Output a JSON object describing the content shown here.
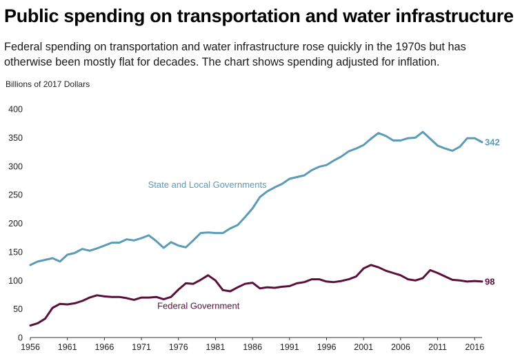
{
  "page": {
    "title": "Public spending on transportation and water infrastructure",
    "subtitle": "Federal spending on transportation and water infrastructure rose quickly in the 1970s but has otherwise been mostly flat for decades. The chart shows spending adjusted for inflation."
  },
  "chart_data": {
    "type": "line",
    "title": "Public spending on transportation and water infrastructure",
    "ylabel": "Billions of 2017 Dollars",
    "xlabel": "",
    "xlim": [
      1956,
      2017
    ],
    "ylim": [
      0,
      400
    ],
    "yticks": [
      0,
      50,
      100,
      150,
      200,
      250,
      300,
      350,
      400
    ],
    "xticks": [
      1956,
      1961,
      1966,
      1971,
      1976,
      1981,
      1986,
      1991,
      1996,
      2001,
      2006,
      2011,
      2016
    ],
    "grid": false,
    "legend": "inline labels",
    "x": [
      1956,
      1957,
      1958,
      1959,
      1960,
      1961,
      1962,
      1963,
      1964,
      1965,
      1966,
      1967,
      1968,
      1969,
      1970,
      1971,
      1972,
      1973,
      1974,
      1975,
      1976,
      1977,
      1978,
      1979,
      1980,
      1981,
      1982,
      1983,
      1984,
      1985,
      1986,
      1987,
      1988,
      1989,
      1990,
      1991,
      1992,
      1993,
      1994,
      1995,
      1996,
      1997,
      1998,
      1999,
      2000,
      2001,
      2002,
      2003,
      2004,
      2005,
      2006,
      2007,
      2008,
      2009,
      2010,
      2011,
      2012,
      2013,
      2014,
      2015,
      2016,
      2017
    ],
    "series": [
      {
        "name": "State and Local Governments",
        "color": "#5b9bb8",
        "end_label": "342",
        "values": [
          127,
          133,
          136,
          139,
          133,
          145,
          148,
          155,
          152,
          156,
          161,
          166,
          166,
          172,
          170,
          174,
          179,
          169,
          157,
          167,
          161,
          158,
          170,
          183,
          184,
          183,
          183,
          191,
          197,
          211,
          226,
          246,
          256,
          263,
          269,
          278,
          281,
          284,
          293,
          299,
          302,
          310,
          317,
          326,
          331,
          337,
          348,
          358,
          353,
          345,
          345,
          349,
          350,
          360,
          348,
          336,
          331,
          327,
          334,
          349,
          349,
          342
        ]
      },
      {
        "name": "Federal Government",
        "color": "#5a0f3c",
        "end_label": "98",
        "values": [
          21,
          25,
          33,
          52,
          59,
          58,
          60,
          64,
          70,
          74,
          72,
          71,
          71,
          69,
          66,
          70,
          70,
          71,
          67,
          71,
          84,
          95,
          94,
          101,
          109,
          100,
          83,
          81,
          88,
          94,
          96,
          86,
          88,
          87,
          89,
          90,
          95,
          97,
          102,
          102,
          98,
          97,
          99,
          102,
          107,
          121,
          127,
          123,
          117,
          113,
          109,
          102,
          100,
          104,
          118,
          113,
          107,
          101,
          100,
          98,
          99,
          98
        ]
      }
    ]
  }
}
